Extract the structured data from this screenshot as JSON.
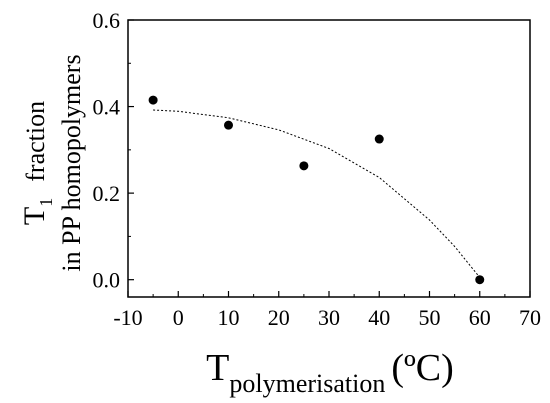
{
  "chart_data": {
    "type": "scatter",
    "xlabel": {
      "main": "T",
      "sub": "polymerisation",
      "unit": "(ºC)"
    },
    "ylabel": {
      "main": "T",
      "sub": "1",
      "rest": "fraction",
      "line2": "in PP homopolymers"
    },
    "xlim": [
      -10,
      70
    ],
    "ylim": [
      -0.04,
      0.6
    ],
    "x_ticks": [
      -10,
      0,
      10,
      20,
      30,
      40,
      50,
      60,
      70
    ],
    "x_tick_labels": [
      "-10",
      "0",
      "10",
      "20",
      "30",
      "40",
      "50",
      "60",
      "70"
    ],
    "y_ticks": [
      0.0,
      0.2,
      0.4,
      0.6
    ],
    "y_tick_labels": [
      "0.0",
      "0.2",
      "0.4",
      "0.6"
    ],
    "grid": false,
    "series": [
      {
        "points": [
          {
            "x": -5,
            "y": 0.415
          },
          {
            "x": 10,
            "y": 0.357
          },
          {
            "x": 25,
            "y": 0.263
          },
          {
            "x": 40,
            "y": 0.325
          },
          {
            "x": 60,
            "y": 0.0
          }
        ],
        "marker": "filled-circle",
        "color": "#000000"
      }
    ],
    "fit_line": {
      "style": "dotted",
      "color": "#000000",
      "points": [
        {
          "x": -5,
          "y": 0.392
        },
        {
          "x": 0,
          "y": 0.389
        },
        {
          "x": 10,
          "y": 0.374
        },
        {
          "x": 20,
          "y": 0.346
        },
        {
          "x": 30,
          "y": 0.303
        },
        {
          "x": 40,
          "y": 0.236
        },
        {
          "x": 50,
          "y": 0.138
        },
        {
          "x": 55,
          "y": 0.077
        },
        {
          "x": 60,
          "y": 0.005
        }
      ]
    }
  }
}
